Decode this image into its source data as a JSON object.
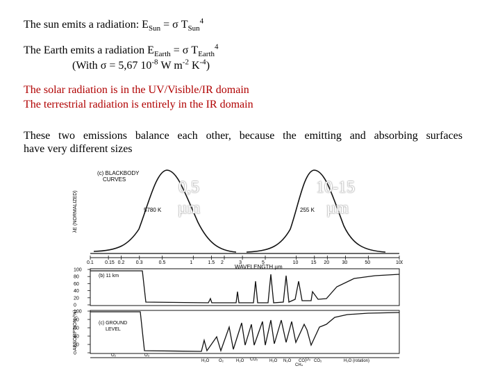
{
  "text": {
    "sun_lead": "The sun emits a radiation:  E",
    "sun_sub": "Sun",
    "sun_eq": " = ",
    "sigma": "σ",
    "sun_T": " T",
    "sun_T_sub": "Sun",
    "sun_pow": "4",
    "earth_lead": "The Earth emits a radiation   E",
    "earth_sub": "Earth",
    "earth_eq": " = ",
    "earth_T": " T",
    "earth_T_sub": "Earth",
    "earth_pow": "4",
    "with_a": "(With ",
    "with_b": " = 5,67 10",
    "with_exp1": "-8",
    "with_c": " W m",
    "with_exp2": "-2",
    "with_d": " K",
    "with_exp3": "-4",
    "with_e": ")",
    "solar": "The solar radiation is in the UV/Visible/IR domain",
    "terrestrial": "The terrestrial  radiation is entirely in the IR domain",
    "balance": "These two emissions balance each other, because the emitting and absorbing surfaces",
    "balance2": "have very different sizes"
  },
  "overlays": {
    "sun_peak": "0,5",
    "sun_unit": "µm",
    "earth_peak": "10-15",
    "earth_unit": "µm"
  },
  "figure": {
    "panel_a_title": "(c) BLACKBODY",
    "panel_a_title2": "CURVES",
    "y_label_a": "λE  (NORMALIZED)",
    "sun_temp": "5780 K",
    "earth_temp": "255 K",
    "x_ticks": [
      "0.1",
      "0.15",
      "0.2",
      "0.3",
      "0.5",
      "1",
      "1.5",
      "2",
      "3",
      "5",
      "10",
      "15",
      "20",
      "30",
      "50",
      "100"
    ],
    "x_label": "WAVELENGTH µm",
    "y_label_b": "ABSORPTION (%)",
    "panel_b_label": "(b) 11 km",
    "panel_c_label": "(c) GROUND",
    "panel_c_label2": "LEVEL",
    "y_ticks": [
      "100",
      "80",
      "60",
      "40",
      "20",
      "0"
    ],
    "y_ticks_c": [
      "100",
      "80",
      "60",
      "40",
      "20",
      "0"
    ],
    "gas_labels": [
      "O₂",
      "O₃",
      "H₂O",
      "O₂",
      "H₂O",
      "CO₂",
      "H₂O",
      "N₂O",
      "CO₂",
      "O₃",
      "CO₂",
      "CH₄",
      "H₂O (rotation)"
    ]
  }
}
